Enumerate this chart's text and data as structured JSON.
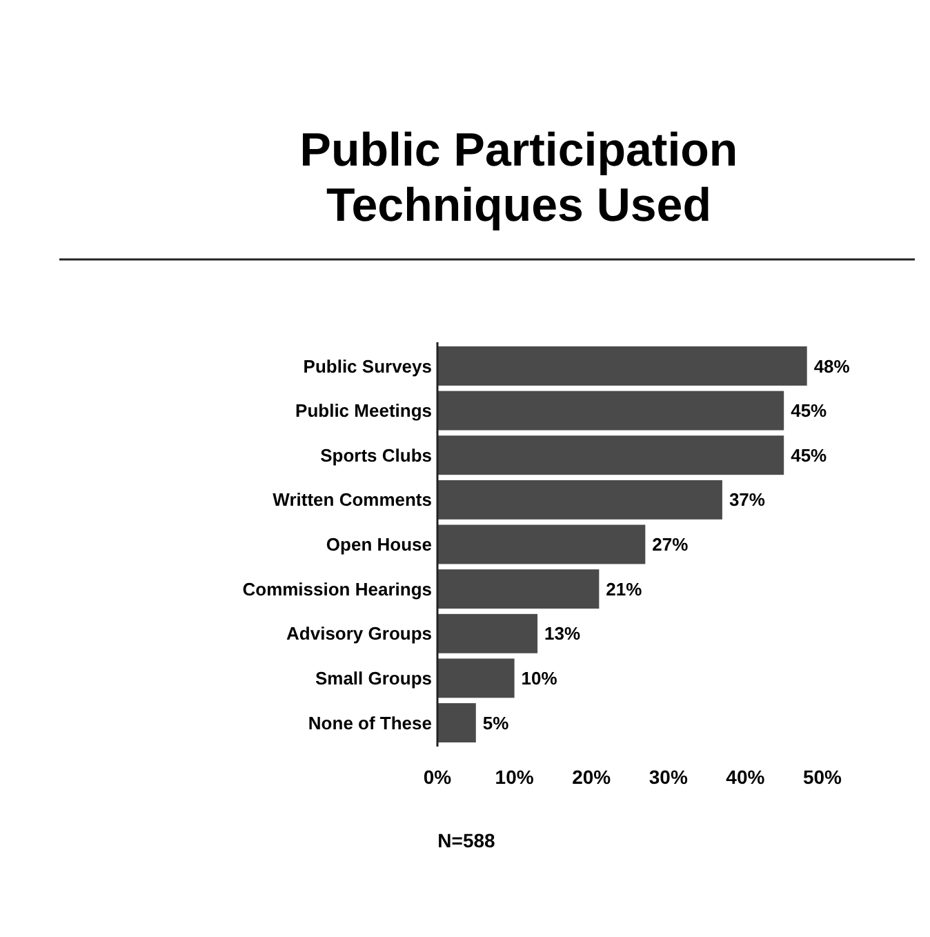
{
  "chart_data": {
    "type": "bar",
    "orientation": "horizontal",
    "title": "Public Participation Techniques Used",
    "categories": [
      "Public Surveys",
      "Public Meetings",
      "Sports Clubs",
      "Written Comments",
      "Open House",
      "Commission Hearings",
      "Advisory Groups",
      "Small Groups",
      "None of These"
    ],
    "values": [
      48,
      45,
      45,
      37,
      27,
      21,
      13,
      10,
      5
    ],
    "value_labels": [
      "48%",
      "45%",
      "45%",
      "37%",
      "27%",
      "21%",
      "13%",
      "10%",
      "5%"
    ],
    "color": "#4a4a4a",
    "xlim": [
      0,
      50
    ],
    "xticks": [
      {
        "value": 0,
        "label": "0%"
      },
      {
        "value": 10,
        "label": "10%"
      },
      {
        "value": 20,
        "label": "20%"
      },
      {
        "value": 30,
        "label": "30%"
      },
      {
        "value": 40,
        "label": "40%"
      },
      {
        "value": 50,
        "label": "50%"
      }
    ],
    "grid": false,
    "annotations": [
      "N=588"
    ]
  }
}
